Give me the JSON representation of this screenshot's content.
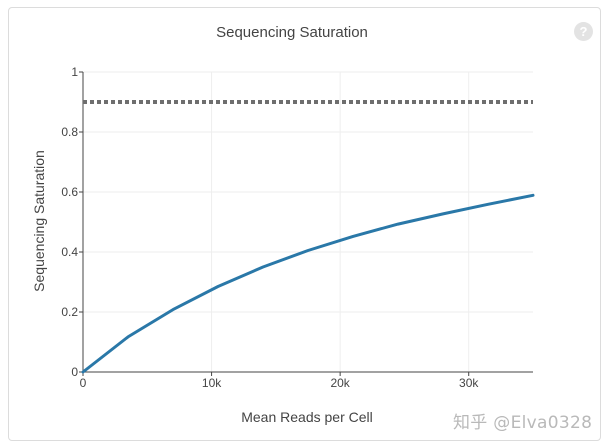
{
  "chart_data": {
    "type": "line",
    "title": "Sequencing Saturation",
    "xlabel": "Mean Reads per Cell",
    "ylabel": "Sequencing Saturation",
    "xlim": [
      0,
      35000
    ],
    "ylim": [
      0,
      1
    ],
    "x_ticks": [
      {
        "value": 0,
        "label": "0"
      },
      {
        "value": 10000,
        "label": "10k"
      },
      {
        "value": 20000,
        "label": "20k"
      },
      {
        "value": 30000,
        "label": "30k"
      }
    ],
    "y_ticks": [
      {
        "value": 0,
        "label": "0"
      },
      {
        "value": 0.2,
        "label": "0.2"
      },
      {
        "value": 0.4,
        "label": "0.4"
      },
      {
        "value": 0.6,
        "label": "0.6"
      },
      {
        "value": 0.8,
        "label": "0.8"
      },
      {
        "value": 1,
        "label": "1"
      }
    ],
    "grid": true,
    "series": [
      {
        "x": [
          0,
          3500,
          7000,
          10500,
          14000,
          17500,
          21000,
          24500,
          28000,
          31500,
          35000
        ],
        "values": [
          0,
          0.117,
          0.208,
          0.285,
          0.35,
          0.405,
          0.452,
          0.493,
          0.527,
          0.559,
          0.589
        ],
        "color": "#2a78a8",
        "style": "solid"
      },
      {
        "x": [
          0,
          35000
        ],
        "values": [
          0.9,
          0.9
        ],
        "color": "#6e6e6e",
        "style": "dotted"
      }
    ]
  },
  "help_icon": {
    "glyph": "?",
    "icon": "question-mark-icon"
  },
  "watermark": "知乎 @Elva0328"
}
